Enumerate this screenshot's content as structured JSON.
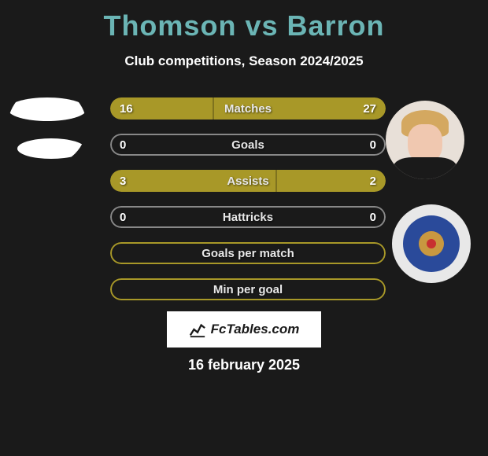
{
  "title": {
    "player1": "Thomson",
    "vs": "vs",
    "player2": "Barron",
    "color": "#6bb5b5"
  },
  "subtitle": "Club competitions, Season 2024/2025",
  "colors": {
    "background": "#1a1a1a",
    "bar_accent": "#a89828",
    "bar_border_accent": "#a89828",
    "bar_border_neutral": "#888888",
    "text": "#ffffff"
  },
  "bars": [
    {
      "label": "Matches",
      "left_val": "16",
      "right_val": "27",
      "left_pct": 37,
      "right_pct": 63,
      "style": "split"
    },
    {
      "label": "Goals",
      "left_val": "0",
      "right_val": "0",
      "left_pct": 0,
      "right_pct": 0,
      "style": "empty"
    },
    {
      "label": "Assists",
      "left_val": "3",
      "right_val": "2",
      "left_pct": 60,
      "right_pct": 40,
      "style": "split"
    },
    {
      "label": "Hattricks",
      "left_val": "0",
      "right_val": "0",
      "left_pct": 0,
      "right_pct": 0,
      "style": "empty"
    },
    {
      "label": "Goals per match",
      "left_val": "",
      "right_val": "",
      "left_pct": 0,
      "right_pct": 0,
      "style": "outline"
    },
    {
      "label": "Min per goal",
      "left_val": "",
      "right_val": "",
      "left_pct": 0,
      "right_pct": 0,
      "style": "outline"
    }
  ],
  "watermark": "FcTables.com",
  "date": "16 february 2025"
}
